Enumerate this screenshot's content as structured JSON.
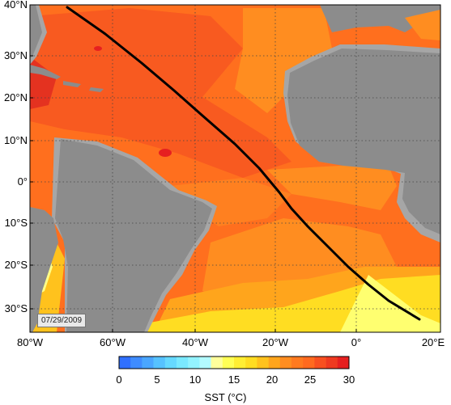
{
  "map": {
    "lat_labels": [
      "40°N",
      "30°N",
      "20°N",
      "10°N",
      "0°",
      "10°S",
      "20°S",
      "30°S"
    ],
    "lon_labels": [
      "80°W",
      "60°W",
      "40°W",
      "20°W",
      "0°",
      "20°E"
    ],
    "date": "07/29/2009",
    "land_color": "#8c8c8c",
    "shelf_color": "#a6a6a6",
    "track_color": "#000000"
  },
  "colorbar": {
    "title": "SST (°C)",
    "tick_labels": [
      "0",
      "5",
      "10",
      "15",
      "20",
      "25",
      "30"
    ],
    "range": [
      0,
      30
    ],
    "colors": [
      "#3070ff",
      "#3f8cff",
      "#4aa6ff",
      "#56c2ff",
      "#66d9ff",
      "#7ae9ff",
      "#93f3ff",
      "#b3fbff",
      "#ffff9c",
      "#ffff55",
      "#ffee33",
      "#ffdd22",
      "#ffc21d",
      "#ffa51c",
      "#ff8d20",
      "#ff7a1f",
      "#ff6a1f",
      "#f85020",
      "#ef3a20",
      "#e62020"
    ]
  }
}
